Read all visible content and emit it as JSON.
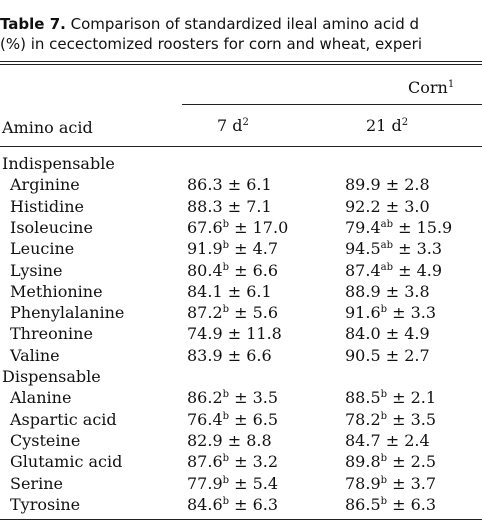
{
  "caption": {
    "label": "Table 7.",
    "line1": " Comparison of standardized ileal amino acid d",
    "line2": "(%) in cecectomized roosters for corn and wheat, experi"
  },
  "header": {
    "group": "Corn",
    "group_sup": "1",
    "row_label": "Amino acid",
    "col1": "7 d",
    "col1_sup": "2",
    "col2": "21 d",
    "col2_sup": "2"
  },
  "groups": [
    {
      "name": "Indispensable",
      "rows": [
        {
          "name": "Arginine",
          "v7": "86.3",
          "s7": "",
          "e7": "± 6.1",
          "v21": "89.9",
          "s21": "",
          "e21": "± 2.8"
        },
        {
          "name": "Histidine",
          "v7": "88.3",
          "s7": "",
          "e7": "± 7.1",
          "v21": "92.2",
          "s21": "",
          "e21": "± 3.0"
        },
        {
          "name": "Isoleucine",
          "v7": "67.6",
          "s7": "b",
          "e7": "± 17.0",
          "v21": "79.4",
          "s21": "ab",
          "e21": "± 15.9"
        },
        {
          "name": "Leucine",
          "v7": "91.9",
          "s7": "b",
          "e7": "± 4.7",
          "v21": "94.5",
          "s21": "ab",
          "e21": "± 3.3"
        },
        {
          "name": "Lysine",
          "v7": "80.4",
          "s7": "b",
          "e7": "± 6.6",
          "v21": "87.4",
          "s21": "ab",
          "e21": "± 4.9"
        },
        {
          "name": "Methionine",
          "v7": "84.1",
          "s7": "",
          "e7": "± 6.1",
          "v21": "88.9",
          "s21": "",
          "e21": "± 3.8"
        },
        {
          "name": "Phenylalanine",
          "v7": "87.2",
          "s7": "b",
          "e7": "± 5.6",
          "v21": "91.6",
          "s21": "b",
          "e21": "± 3.3"
        },
        {
          "name": "Threonine",
          "v7": "74.9",
          "s7": "",
          "e7": "± 11.8",
          "v21": "84.0",
          "s21": "",
          "e21": "± 4.9"
        },
        {
          "name": "Valine",
          "v7": "83.9",
          "s7": "",
          "e7": "± 6.6",
          "v21": "90.5",
          "s21": "",
          "e21": "± 2.7"
        }
      ]
    },
    {
      "name": "Dispensable",
      "rows": [
        {
          "name": "Alanine",
          "v7": "86.2",
          "s7": "b",
          "e7": "± 3.5",
          "v21": "88.5",
          "s21": "b",
          "e21": "± 2.1"
        },
        {
          "name": "Aspartic acid",
          "v7": "76.4",
          "s7": "b",
          "e7": "± 6.5",
          "v21": "78.2",
          "s21": "b",
          "e21": "± 3.5"
        },
        {
          "name": "Cysteine",
          "v7": "82.9",
          "s7": "",
          "e7": "± 8.8",
          "v21": "84.7",
          "s21": "",
          "e21": "± 2.4"
        },
        {
          "name": "Glutamic acid",
          "v7": "87.6",
          "s7": "b",
          "e7": "± 3.2",
          "v21": "89.8",
          "s21": "b",
          "e21": "± 2.5"
        },
        {
          "name": "Serine",
          "v7": "77.9",
          "s7": "b",
          "e7": "± 5.4",
          "v21": "78.9",
          "s21": "b",
          "e21": "± 3.7"
        },
        {
          "name": "Tyrosine",
          "v7": "84.6",
          "s7": "b",
          "e7": "± 6.3",
          "v21": "86.5",
          "s21": "b",
          "e21": "± 6.3"
        }
      ]
    }
  ]
}
